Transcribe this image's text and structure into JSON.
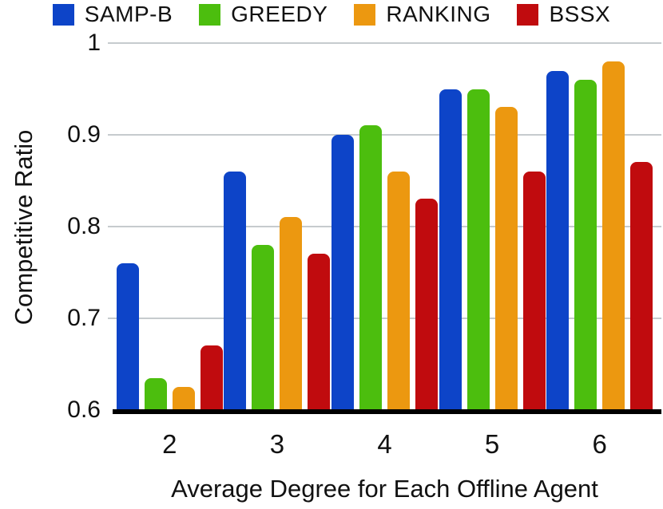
{
  "chart_data": {
    "type": "bar",
    "title": "",
    "xlabel": "Average Degree for Each Offline Agent",
    "ylabel": "Competitive Ratio",
    "categories": [
      "2",
      "3",
      "4",
      "5",
      "6"
    ],
    "series": [
      {
        "name": "SAMP-B",
        "color": "#0d44c8",
        "values": [
          0.76,
          0.86,
          0.9,
          0.95,
          0.97
        ]
      },
      {
        "name": "GREEDY",
        "color": "#4cbe0e",
        "values": [
          0.635,
          0.78,
          0.91,
          0.95,
          0.96
        ]
      },
      {
        "name": "RANKING",
        "color": "#ec9810",
        "values": [
          0.625,
          0.81,
          0.86,
          0.93,
          0.98
        ]
      },
      {
        "name": "BSSX",
        "color": "#c00b0e",
        "values": [
          0.67,
          0.77,
          0.83,
          0.86,
          0.87
        ]
      }
    ],
    "ylim": [
      0.6,
      1.0
    ],
    "yticks": [
      {
        "value": 1.0,
        "label": "1"
      },
      {
        "value": 0.9,
        "label": "0.9"
      },
      {
        "value": 0.8,
        "label": "0.8"
      },
      {
        "value": 0.7,
        "label": "0.7"
      },
      {
        "value": 0.6,
        "label": "0.6"
      }
    ],
    "grid": "horizontal",
    "legend_position": "top",
    "background_color": "#ffffff",
    "grid_color": "#c6cbce",
    "axis_color": "#000000",
    "text_color": "#111111"
  }
}
